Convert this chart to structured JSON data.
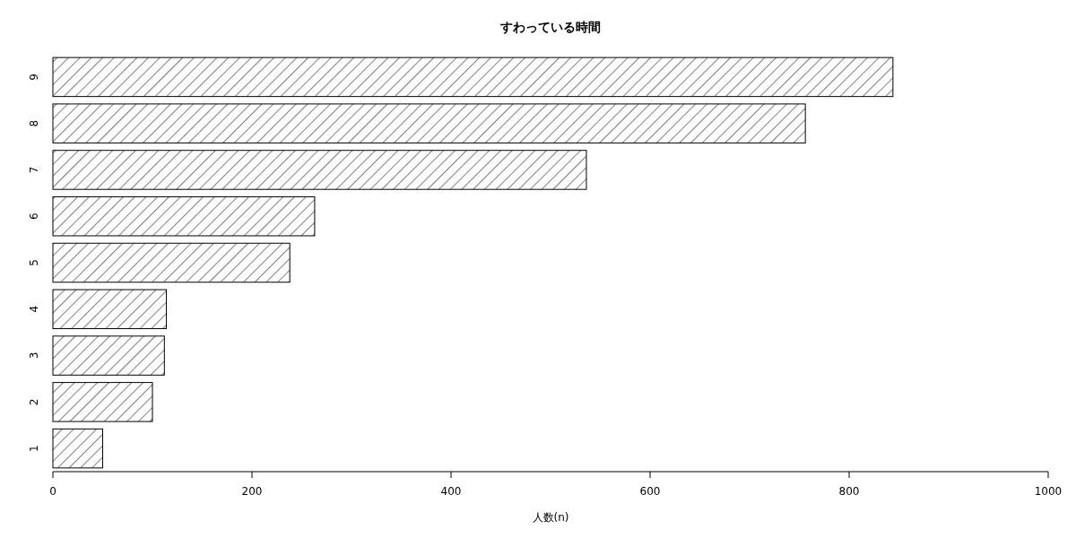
{
  "chart_data": {
    "type": "bar",
    "orientation": "horizontal",
    "title": "すわっている時間",
    "xlabel": "人数(n)",
    "categories": [
      "9",
      "8",
      "7",
      "6",
      "5",
      "4",
      "3",
      "2",
      "1"
    ],
    "values": [
      844,
      756,
      536,
      263,
      238,
      114,
      112,
      100,
      50
    ],
    "color": "#000000",
    "xlim": [
      0,
      1000
    ],
    "xticks": [
      0,
      200,
      400,
      600,
      800,
      1000
    ]
  }
}
